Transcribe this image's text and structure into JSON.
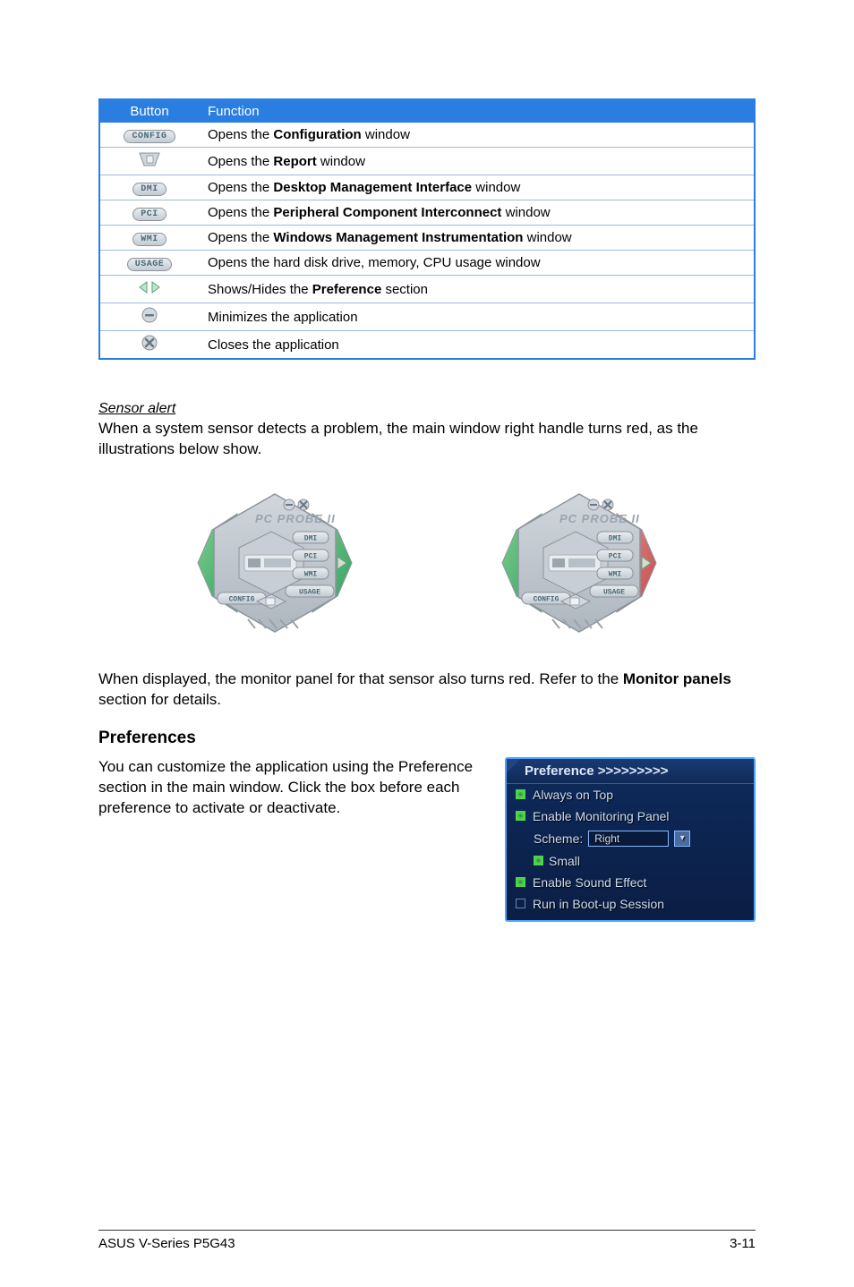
{
  "table": {
    "header_button": "Button",
    "header_function": "Function",
    "rows": [
      {
        "btn_label": "CONFIG",
        "btn_style": "pill",
        "fn_pre": "Opens the ",
        "fn_bold": "Configuration",
        "fn_post": " window"
      },
      {
        "btn_label": "report",
        "btn_style": "report",
        "fn_pre": "Opens the ",
        "fn_bold": "Report",
        "fn_post": " window"
      },
      {
        "btn_label": "DMI",
        "btn_style": "pill",
        "fn_pre": "Opens the ",
        "fn_bold": "Desktop Management Interface",
        "fn_post": " window"
      },
      {
        "btn_label": "PCI",
        "btn_style": "pill",
        "fn_pre": "Opens the ",
        "fn_bold": "Peripheral Component Interconnect",
        "fn_post": " window"
      },
      {
        "btn_label": "WMI",
        "btn_style": "pill",
        "fn_pre": "Opens the ",
        "fn_bold": "Windows Management Instrumentation",
        "fn_post": " window"
      },
      {
        "btn_label": "USAGE",
        "btn_style": "pill",
        "fn_pre": "Opens the hard disk drive, memory, CPU usage window",
        "fn_bold": "",
        "fn_post": ""
      },
      {
        "btn_label": "arrows",
        "btn_style": "arrows",
        "fn_pre": "Shows/Hides the ",
        "fn_bold": "Preference",
        "fn_post": " section"
      },
      {
        "btn_label": "min",
        "btn_style": "min",
        "fn_pre": "Minimizes the application",
        "fn_bold": "",
        "fn_post": ""
      },
      {
        "btn_label": "close",
        "btn_style": "close",
        "fn_pre": "Closes the application",
        "fn_bold": "",
        "fn_post": ""
      }
    ]
  },
  "sensor_heading": "Sensor alert",
  "sensor_text": "When a system sensor detects a problem, the main window right handle turns red, as the illustrations below show.",
  "hex": {
    "title": "PC PROBE II",
    "btn_dmi": "DMI",
    "btn_pci": "PCI",
    "btn_wmi": "WMI",
    "btn_usage": "USAGE",
    "btn_config": "CONFIG",
    "colors": {
      "body_light": "#d0d6dc",
      "body_dark": "#aeb6bf",
      "edge": "#8c949c",
      "green_grad_a": "#7fcf8f",
      "green_grad_b": "#2f9f5f",
      "red_grad_a": "#e98f8f",
      "red_grad_b": "#c24b4b",
      "pill_bg_a": "#e9edf0",
      "pill_bg_b": "#c3cbd2",
      "pill_text": "#4a6a7a",
      "arrow_fill": "#cfe0d0",
      "arrow_stroke": "#6f9f7f"
    }
  },
  "monitor_text_pre": "When displayed, the monitor panel for that sensor also turns red. Refer to the ",
  "monitor_text_bold": "Monitor panels",
  "monitor_text_post": " section for details.",
  "prefs_heading": "Preferences",
  "prefs_intro": "You can customize the application using the Preference section in the main window. Click the box before each preference to activate or deactivate.",
  "pref_panel": {
    "title": "Preference >>>>>>>>>",
    "items": {
      "always_on_top": "Always on Top",
      "enable_monitoring": "Enable Monitoring Panel",
      "scheme_label": "Scheme:",
      "scheme_value": "Right",
      "small": "Small",
      "enable_sound": "Enable Sound Effect",
      "run_boot": "Run in Boot-up Session"
    }
  },
  "footer_left": "ASUS V-Series P5G43",
  "footer_right": "3-11"
}
